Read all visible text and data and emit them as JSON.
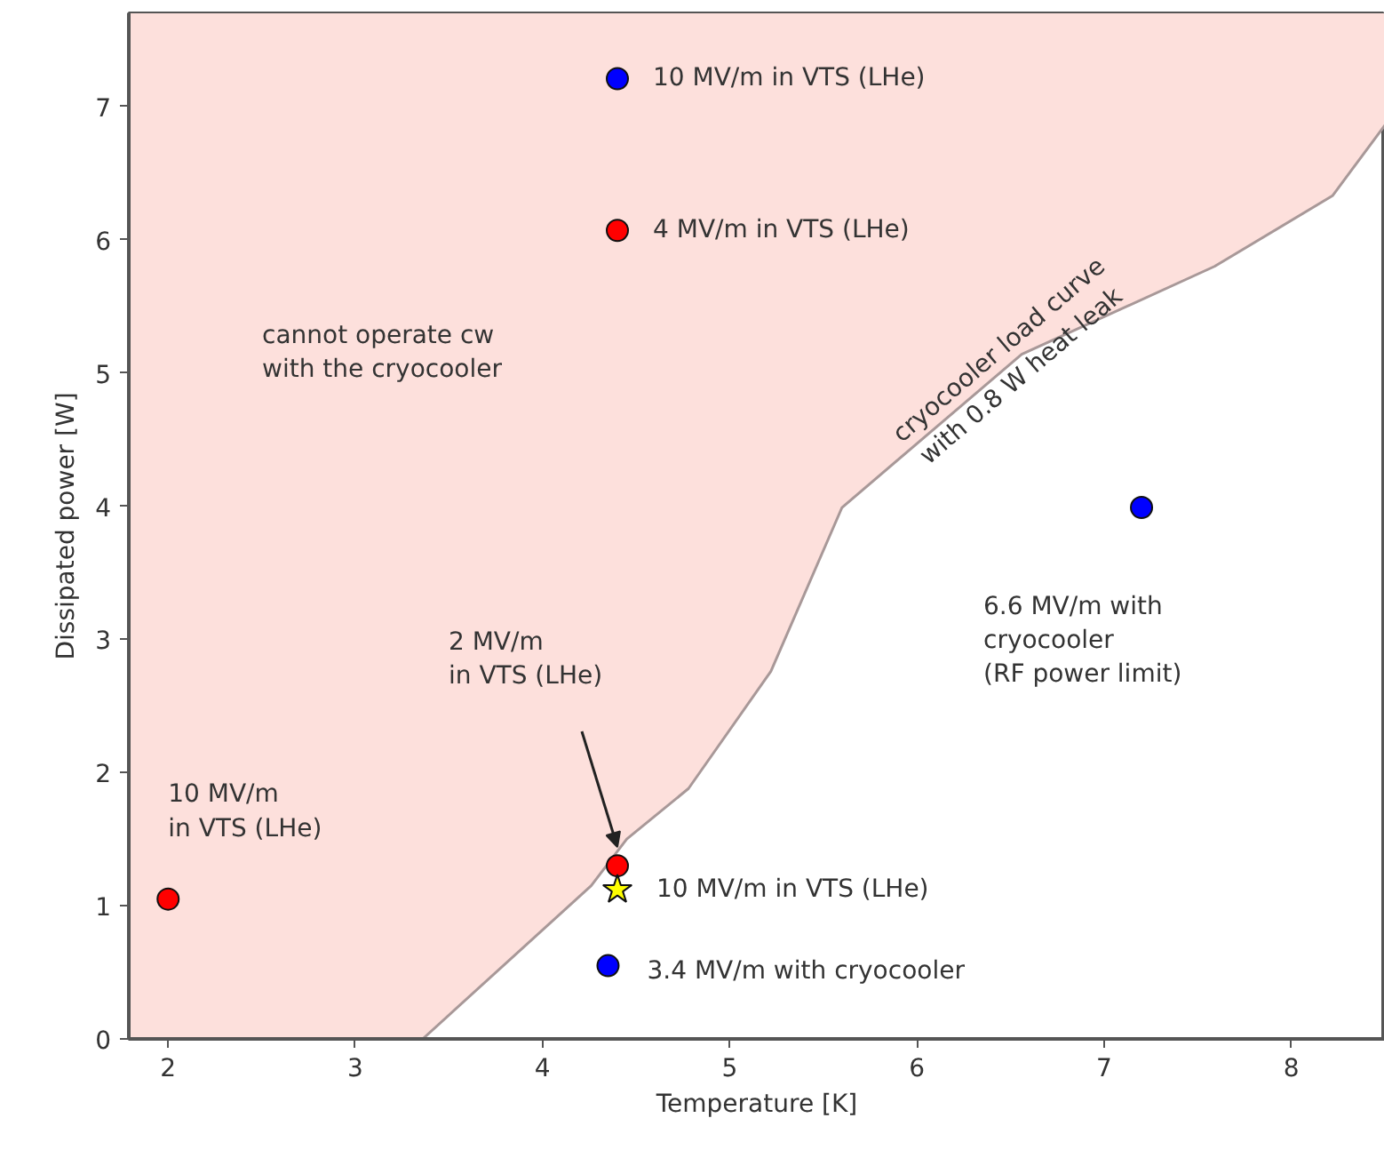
{
  "chart_data": {
    "type": "scatter",
    "xlabel": "Temperature [K]",
    "ylabel": "Dissipated power [W]",
    "xlim": [
      1.79,
      8.5
    ],
    "ylim": [
      0,
      7.7
    ],
    "xticks": [
      2,
      3,
      4,
      5,
      6,
      7,
      8
    ],
    "yticks": [
      0,
      1,
      2,
      3,
      4,
      5,
      6,
      7
    ],
    "grid": false,
    "series": [
      {
        "type": "line",
        "color": "#a89898",
        "x": [
          1.79,
          3.36,
          4.26,
          4.45,
          4.78,
          5.22,
          5.6,
          6.56,
          7.59,
          8.22,
          8.5
        ],
        "values": [
          0,
          0,
          1.15,
          1.5,
          1.88,
          2.76,
          3.99,
          5.14,
          5.8,
          6.33,
          6.86
        ],
        "lower": [
          0,
          0,
          1.15,
          1.5,
          1.88,
          2.76,
          3.99,
          5.14,
          5.8,
          6.33,
          6.86
        ],
        "upper": [
          7.7,
          7.7,
          7.7,
          7.7,
          7.7,
          7.7,
          7.7,
          7.7,
          7.7,
          7.7,
          7.7
        ]
      },
      {
        "marker": "circle",
        "color": "#ff0000",
        "x": [
          2.0,
          4.4,
          4.4
        ],
        "values": [
          1.05,
          6.07,
          1.3
        ]
      },
      {
        "marker": "circle",
        "color": "#0000ff",
        "x": [
          4.4,
          4.35,
          7.2
        ],
        "values": [
          7.21,
          0.55,
          3.99
        ]
      },
      {
        "marker": "star",
        "color": "#ffff00",
        "x": [
          4.4
        ],
        "values": [
          1.12
        ]
      }
    ],
    "annotations": [
      {
        "text": "10 MV/m in VTS (LHe)",
        "x": 4.4,
        "y": 7.21
      },
      {
        "text": "4 MV/m in VTS (LHe)",
        "x": 4.4,
        "y": 6.07
      },
      "cannot operate cw\nwith the cryocooler",
      {
        "text": "cryocooler load curve\nwith 0.8 W heat leak",
        "x": 6.5,
        "y": 5.07
      },
      "6.6 MV/m with\ncryocooler\n(RF power limit)",
      "2 MV/m\nin VTS (LHe)",
      {
        "text": "10 MV/m in VTS (LHe)",
        "x": 4.4,
        "y": 1.12
      },
      {
        "text": "3.4 MV/m with cryocooler",
        "x": 4.35,
        "y": 0.55
      },
      {
        "text": "10 MV/m\nin VTS (LHe)",
        "x": 2.0,
        "y": 1.05
      }
    ]
  }
}
